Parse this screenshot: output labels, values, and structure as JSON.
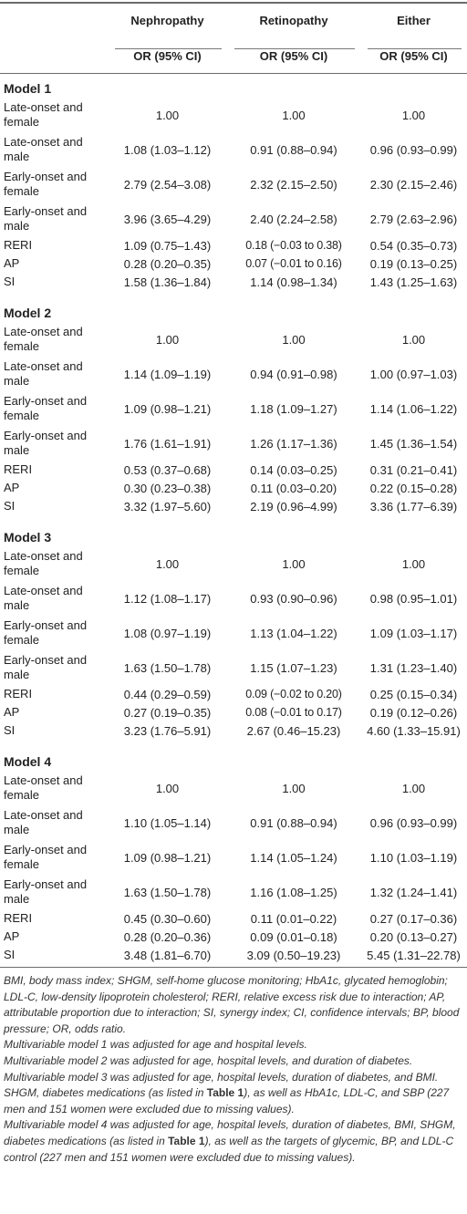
{
  "header": {
    "col1": "Nephropathy",
    "col2": "Retinopathy",
    "col3": "Either",
    "sub1": "OR (95% CI)",
    "sub2": "OR (95% CI)",
    "sub3": "OR (95% CI)"
  },
  "models": [
    {
      "title": "Model 1",
      "rows": [
        {
          "label": "Late-onset and female",
          "neph": "1.00",
          "ret": "1.00",
          "either": "1.00"
        },
        {
          "label": "Late-onset and male",
          "neph": "1.08 (1.03–1.12)",
          "ret": "0.91 (0.88–0.94)",
          "either": "0.96 (0.93–0.99)"
        },
        {
          "label": "Early-onset and female",
          "neph": "2.79 (2.54–3.08)",
          "ret": "2.32 (2.15–2.50)",
          "either": "2.30 (2.15–2.46)"
        },
        {
          "label": "Early-onset and male",
          "neph": "3.96 (3.65–4.29)",
          "ret": "2.40 (2.24–2.58)",
          "either": "2.79 (2.63–2.96)"
        },
        {
          "label": "RERI",
          "neph": "1.09 (0.75–1.43)",
          "ret": "0.18 (−0.03 to 0.38)",
          "either": "0.54 (0.35–0.73)"
        },
        {
          "label": "AP",
          "neph": "0.28 (0.20–0.35)",
          "ret": "0.07 (−0.01 to 0.16)",
          "either": "0.19 (0.13–0.25)"
        },
        {
          "label": "SI",
          "neph": "1.58 (1.36–1.84)",
          "ret": "1.14 (0.98–1.34)",
          "either": "1.43 (1.25–1.63)"
        }
      ]
    },
    {
      "title": "Model 2",
      "rows": [
        {
          "label": "Late-onset and female",
          "neph": "1.00",
          "ret": "1.00",
          "either": "1.00"
        },
        {
          "label": "Late-onset and male",
          "neph": "1.14 (1.09–1.19)",
          "ret": "0.94 (0.91–0.98)",
          "either": "1.00 (0.97–1.03)"
        },
        {
          "label": "Early-onset and female",
          "neph": "1.09 (0.98–1.21)",
          "ret": "1.18 (1.09–1.27)",
          "either": "1.14 (1.06–1.22)"
        },
        {
          "label": "Early-onset and male",
          "neph": "1.76 (1.61–1.91)",
          "ret": "1.26 (1.17–1.36)",
          "either": "1.45 (1.36–1.54)"
        },
        {
          "label": "RERI",
          "neph": "0.53 (0.37–0.68)",
          "ret": "0.14 (0.03–0.25)",
          "either": "0.31 (0.21–0.41)"
        },
        {
          "label": "AP",
          "neph": "0.30 (0.23–0.38)",
          "ret": "0.11 (0.03–0.20)",
          "either": "0.22 (0.15–0.28)"
        },
        {
          "label": "SI",
          "neph": "3.32 (1.97–5.60)",
          "ret": "2.19 (0.96–4.99)",
          "either": "3.36 (1.77–6.39)"
        }
      ]
    },
    {
      "title": "Model 3",
      "rows": [
        {
          "label": "Late-onset and female",
          "neph": "1.00",
          "ret": "1.00",
          "either": "1.00"
        },
        {
          "label": "Late-onset and male",
          "neph": "1.12 (1.08–1.17)",
          "ret": "0.93 (0.90–0.96)",
          "either": "0.98 (0.95–1.01)"
        },
        {
          "label": "Early-onset and female",
          "neph": "1.08 (0.97–1.19)",
          "ret": "1.13 (1.04–1.22)",
          "either": "1.09 (1.03–1.17)"
        },
        {
          "label": "Early-onset and male",
          "neph": "1.63 (1.50–1.78)",
          "ret": "1.15 (1.07–1.23)",
          "either": "1.31 (1.23–1.40)"
        },
        {
          "label": "RERI",
          "neph": "0.44 (0.29–0.59)",
          "ret": "0.09 (−0.02 to 0.20)",
          "either": "0.25 (0.15–0.34)"
        },
        {
          "label": "AP",
          "neph": "0.27 (0.19–0.35)",
          "ret": "0.08 (−0.01 to 0.17)",
          "either": "0.19 (0.12–0.26)"
        },
        {
          "label": "SI",
          "neph": "3.23 (1.76–5.91)",
          "ret": "2.67 (0.46–15.23)",
          "either": "4.60 (1.33–15.91)"
        }
      ]
    },
    {
      "title": "Model 4",
      "rows": [
        {
          "label": "Late-onset and female",
          "neph": "1.00",
          "ret": "1.00",
          "either": "1.00"
        },
        {
          "label": "Late-onset and male",
          "neph": "1.10 (1.05–1.14)",
          "ret": "0.91 (0.88–0.94)",
          "either": "0.96 (0.93–0.99)"
        },
        {
          "label": "Early-onset and female",
          "neph": "1.09 (0.98–1.21)",
          "ret": "1.14 (1.05–1.24)",
          "either": "1.10 (1.03–1.19)"
        },
        {
          "label": "Early-onset and male",
          "neph": "1.63 (1.50–1.78)",
          "ret": "1.16 (1.08–1.25)",
          "either": "1.32 (1.24–1.41)"
        },
        {
          "label": "RERI",
          "neph": "0.45 (0.30–0.60)",
          "ret": "0.11 (0.01–0.22)",
          "either": "0.27 (0.17–0.36)"
        },
        {
          "label": "AP",
          "neph": "0.28 (0.20–0.36)",
          "ret": "0.09 (0.01–0.18)",
          "either": "0.20 (0.13–0.27)"
        },
        {
          "label": "SI",
          "neph": "3.48 (1.81–6.70)",
          "ret": "3.09 (0.50–19.23)",
          "either": "5.45 (1.31–22.78)"
        }
      ]
    }
  ],
  "notes": {
    "abbreviations": "BMI, body mass index; SHGM, self-home glucose monitoring; HbA1c, glycated hemoglobin; LDL-C, low-density lipoprotein cholesterol; RERI, relative excess risk due to interaction; AP, attributable proportion due to interaction; SI, synergy index; CI, confidence intervals; BP, blood pressure; OR, odds ratio.",
    "model1": "Multivariable model 1 was adjusted for age and hospital levels.",
    "model2": "Multivariable model 2 was adjusted for age, hospital levels, and duration of diabetes.",
    "model3_pre": "Multivariable model 3 was adjusted for age, hospital levels, duration of diabetes, and BMI. SHGM, diabetes medications (as listed in ",
    "model3_ref": "Table 1",
    "model3_post": "), as well as HbA1c, LDL-C, and SBP (227 men and 151 women were excluded due to missing values).",
    "model4_pre": "Multivariable model 4 was adjusted for age, hospital levels, duration of diabetes, BMI, SHGM, diabetes medications (as listed in ",
    "model4_ref": "Table 1",
    "model4_post": "), as well as the targets of glycemic, BP, and LDL-C control (227 men and 151 women were excluded due to missing values)."
  }
}
